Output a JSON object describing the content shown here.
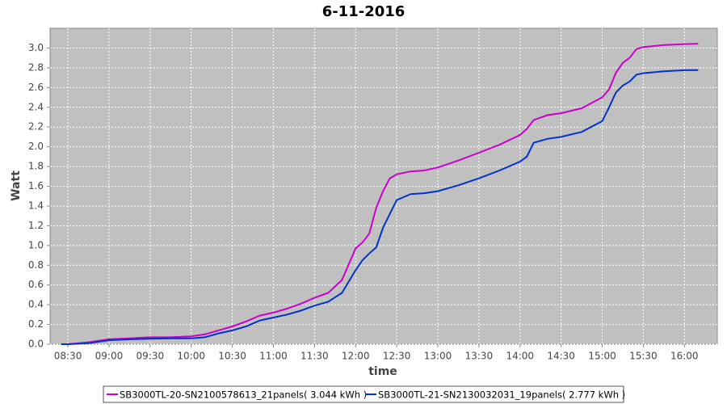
{
  "chart_data": {
    "type": "line",
    "title": "6-11-2016",
    "x_label": "time",
    "y_label": "Watt",
    "x": [
      "08:25",
      "08:30",
      "08:45",
      "09:00",
      "09:15",
      "09:30",
      "09:45",
      "10:00",
      "10:10",
      "10:20",
      "10:30",
      "10:40",
      "10:50",
      "11:00",
      "11:10",
      "11:20",
      "11:30",
      "11:40",
      "11:50",
      "12:00",
      "12:05",
      "12:10",
      "12:15",
      "12:20",
      "12:25",
      "12:30",
      "12:40",
      "12:50",
      "13:00",
      "13:15",
      "13:30",
      "13:45",
      "14:00",
      "14:05",
      "14:10",
      "14:20",
      "14:30",
      "14:45",
      "15:00",
      "15:05",
      "15:10",
      "15:15",
      "15:20",
      "15:25",
      "15:30",
      "15:45",
      "16:00",
      "16:10"
    ],
    "series": [
      {
        "name": "SB3000TL-20-SN2100578613_21panels( 3.044 kWh )",
        "color": "#cc00cc",
        "values": [
          0.0,
          0.0,
          0.02,
          0.05,
          0.06,
          0.07,
          0.07,
          0.08,
          0.1,
          0.14,
          0.18,
          0.23,
          0.29,
          0.32,
          0.36,
          0.41,
          0.47,
          0.52,
          0.65,
          0.97,
          1.03,
          1.12,
          1.38,
          1.55,
          1.68,
          1.72,
          1.75,
          1.76,
          1.79,
          1.86,
          1.94,
          2.02,
          2.12,
          2.18,
          2.27,
          2.32,
          2.34,
          2.39,
          2.5,
          2.58,
          2.75,
          2.85,
          2.9,
          2.99,
          3.01,
          3.03,
          3.04,
          3.044
        ]
      },
      {
        "name": "SB3000TL-21-SN2130032031_19panels( 2.777 kWh )",
        "color": "#0033cc",
        "values": [
          0.0,
          0.0,
          0.01,
          0.04,
          0.05,
          0.055,
          0.06,
          0.06,
          0.07,
          0.11,
          0.14,
          0.18,
          0.24,
          0.27,
          0.3,
          0.34,
          0.39,
          0.43,
          0.52,
          0.75,
          0.85,
          0.92,
          0.98,
          1.18,
          1.32,
          1.46,
          1.52,
          1.53,
          1.55,
          1.61,
          1.68,
          1.76,
          1.85,
          1.9,
          2.04,
          2.08,
          2.1,
          2.15,
          2.26,
          2.4,
          2.55,
          2.62,
          2.66,
          2.73,
          2.745,
          2.765,
          2.775,
          2.777
        ]
      }
    ],
    "xlim": [
      "08:17",
      "16:24"
    ],
    "xticks": [
      "08:30",
      "09:00",
      "09:30",
      "10:00",
      "10:30",
      "11:00",
      "11:30",
      "12:00",
      "12:30",
      "13:00",
      "13:30",
      "14:00",
      "14:30",
      "15:00",
      "15:30",
      "16:00"
    ],
    "ylim": [
      0,
      3.2
    ],
    "yticks": [
      {
        "value": 0,
        "label": "0.0"
      },
      0.2,
      0.4,
      0.6,
      0.8,
      {
        "value": 1,
        "label": "1.0"
      },
      1.2,
      1.4,
      1.6,
      1.8,
      {
        "value": 2,
        "label": "2.0"
      },
      2.2,
      2.4,
      2.6,
      2.8,
      {
        "value": 3,
        "label": "3.0"
      }
    ],
    "grid": true,
    "legend": "bottom"
  }
}
